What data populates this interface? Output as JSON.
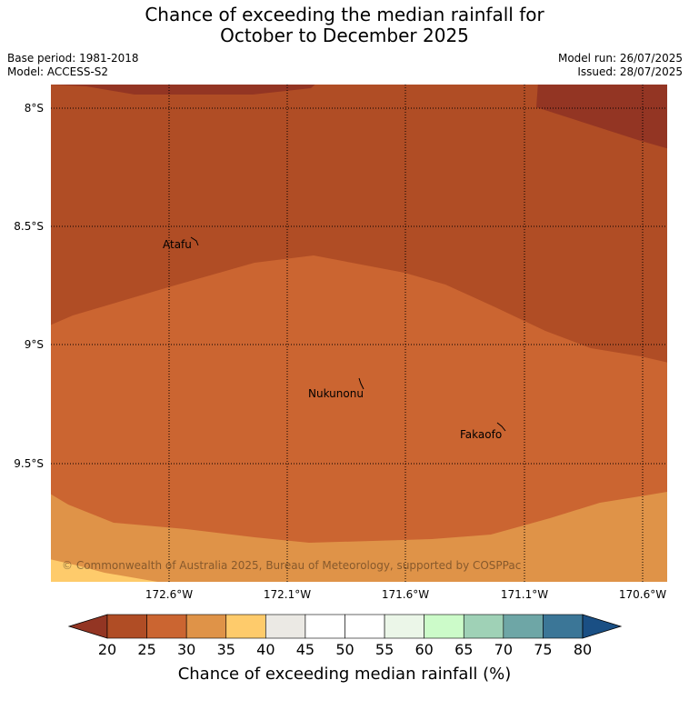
{
  "header": {
    "title_line1": "Chance of exceeding the median rainfall for",
    "title_line2": "October to December 2025",
    "base_period": "Base period: 1981-2018",
    "model": "Model: ACCESS-S2",
    "model_run": "Model run: 26/07/2025",
    "issued": "Issued: 28/07/2025"
  },
  "map": {
    "lat_labels": [
      "8°S",
      "8.5°S",
      "9°S",
      "9.5°S"
    ],
    "lon_labels": [
      "172.6°W",
      "172.1°W",
      "171.6°W",
      "171.1°W",
      "170.6°W"
    ],
    "places": [
      {
        "name": "Atafu",
        "lat": -8.58,
        "lon": -172.48
      },
      {
        "name": "Nukunonu",
        "lat": -9.18,
        "lon": -171.86
      },
      {
        "name": "Fakaofo",
        "lat": -9.37,
        "lon": -171.22
      }
    ],
    "copyright": "© Commonwealth of Australia 2025, Bureau of Meteorology, supported by COSPPac"
  },
  "legend": {
    "ticks": [
      "20",
      "25",
      "30",
      "35",
      "40",
      "45",
      "50",
      "55",
      "60",
      "65",
      "70",
      "75",
      "80"
    ],
    "label": "Chance of exceeding median rainfall (%)",
    "colors": [
      "#933523",
      "#b04d25",
      "#cb6531",
      "#df9348",
      "#fecb6b",
      "#ebe9e4",
      "#ffffff",
      "#ffffff",
      "#ebf6e8",
      "#ccfbc9",
      "#9fd1b6",
      "#6ea6a6",
      "#3b7697",
      "#1a4f84"
    ]
  }
}
